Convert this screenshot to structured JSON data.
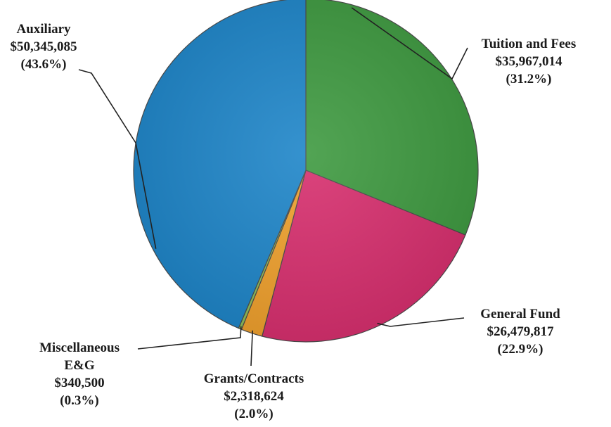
{
  "chart_data": {
    "type": "pie",
    "title": "",
    "slices": [
      {
        "label": "Tuition and Fees",
        "label_lines": [
          "Tuition and Fees"
        ],
        "value": 35967014,
        "value_label": "$35,967,014",
        "percent_label": "(31.2%)",
        "color": "#3f9a41"
      },
      {
        "label": "General Fund",
        "label_lines": [
          "General Fund"
        ],
        "value": 26479817,
        "value_label": "$26,479,817",
        "percent_label": "(22.9%)",
        "color": "#d8306f"
      },
      {
        "label": "Grants/Contracts",
        "label_lines": [
          "Grants/Contracts"
        ],
        "value": 2318624,
        "value_label": "$2,318,624",
        "percent_label": "(2.0%)",
        "color": "#f0a12e"
      },
      {
        "label": "Miscellaneous E&G",
        "label_lines": [
          "Miscellaneous",
          "E&G"
        ],
        "value": 340500,
        "value_label": "$340,500",
        "percent_label": "(0.3%)",
        "color": "#8fbf5a"
      },
      {
        "label": "Auxiliary",
        "label_lines": [
          "Auxiliary"
        ],
        "value": 50345085,
        "value_label": "$50,345,085",
        "percent_label": "(43.6%)",
        "color": "#1f86c9"
      }
    ],
    "start_angle_deg": 0,
    "direction": "clockwise",
    "legend": "none",
    "data_labels": "outside with leader lines"
  }
}
